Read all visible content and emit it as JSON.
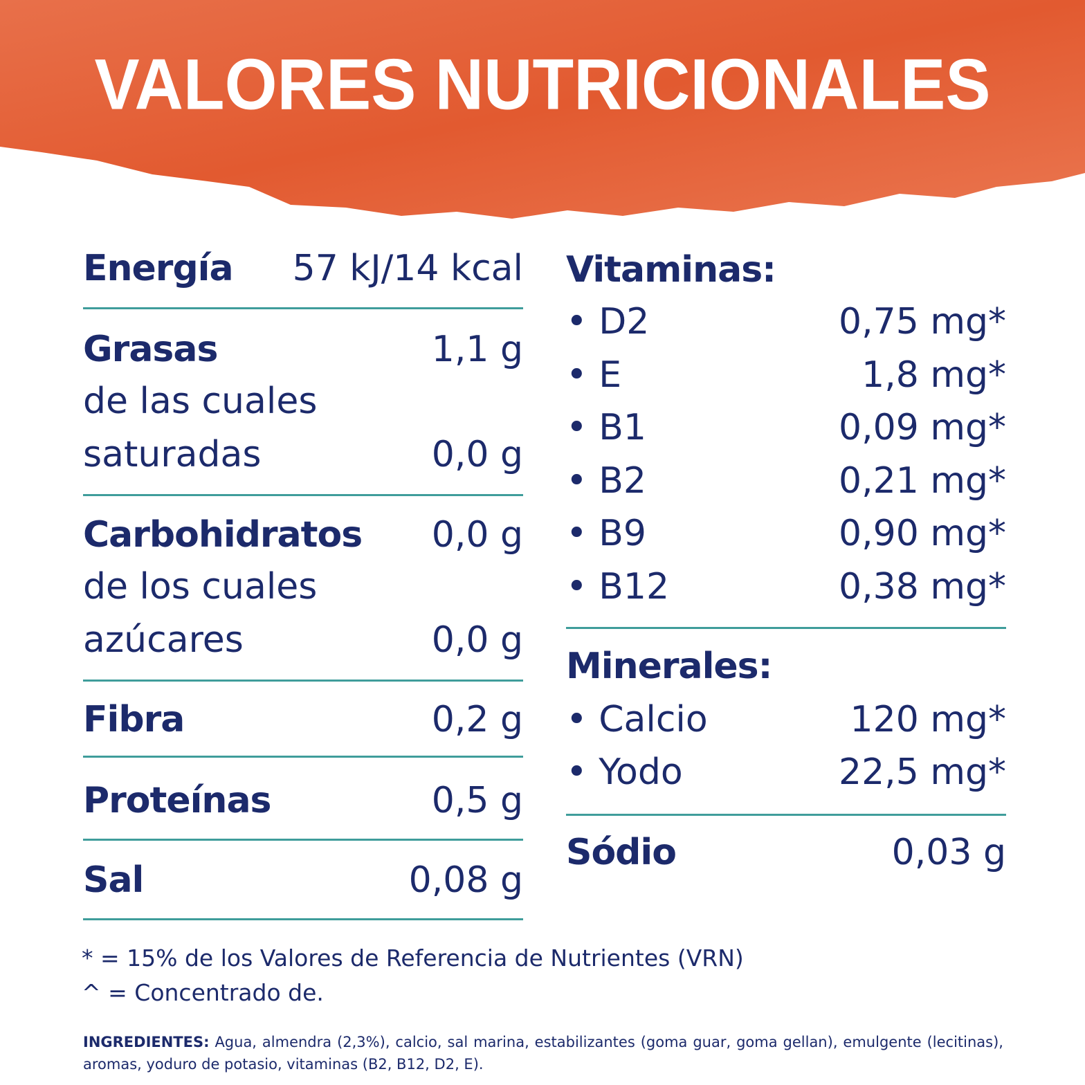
{
  "header": {
    "title": "VALORES NUTRICIONALES"
  },
  "left": {
    "energy": {
      "title": "Energía",
      "value": "57 kJ/14 kcal"
    },
    "fats": {
      "title": "Grasas",
      "value": "1,1 g",
      "sub": [
        "de las cuales",
        "saturadas"
      ],
      "sub_value": "0,0 g"
    },
    "carbs": {
      "title": "Carbohidratos",
      "value": "0,0 g",
      "sub": [
        "de los cuales",
        "azúcares"
      ],
      "sub_value": "0,0 g"
    },
    "fiber": {
      "title": "Fibra",
      "value": "0,2 g"
    },
    "protein": {
      "title": "Proteínas",
      "value": "0,5 g"
    },
    "salt": {
      "title": "Sal",
      "value": "0,08 g"
    }
  },
  "right": {
    "vitamins": {
      "title": "Vitaminas:",
      "items": [
        {
          "name": "D2",
          "value": "0,75 mg*"
        },
        {
          "name": "E",
          "value": "1,8 mg*"
        },
        {
          "name": "B1",
          "value": "0,09 mg*"
        },
        {
          "name": "B2",
          "value": "0,21 mg*"
        },
        {
          "name": "B9",
          "value": "0,90 mg*"
        },
        {
          "name": "B12",
          "value": "0,38 mg*"
        }
      ]
    },
    "minerals": {
      "title": "Minerales:",
      "items": [
        {
          "name": "Calcio",
          "value": "120 mg*"
        },
        {
          "name": "Yodo",
          "value": "22,5 mg*"
        }
      ]
    },
    "sodium": {
      "title": "Sódio",
      "value": "0,03 g"
    }
  },
  "footnotes": [
    "* = 15% de los Valores de Referencia de Nutrientes (VRN)",
    "^ = Concentrado de."
  ],
  "ingredients": {
    "label": "INGREDIENTES:",
    "text": "Agua, almendra (2,3%), calcio, sal marina, estabilizantes (goma guar, goma gellan), emulgente (lecitinas), aromas, yoduro de potasio, vitaminas (B2, B12, D2, E)."
  }
}
